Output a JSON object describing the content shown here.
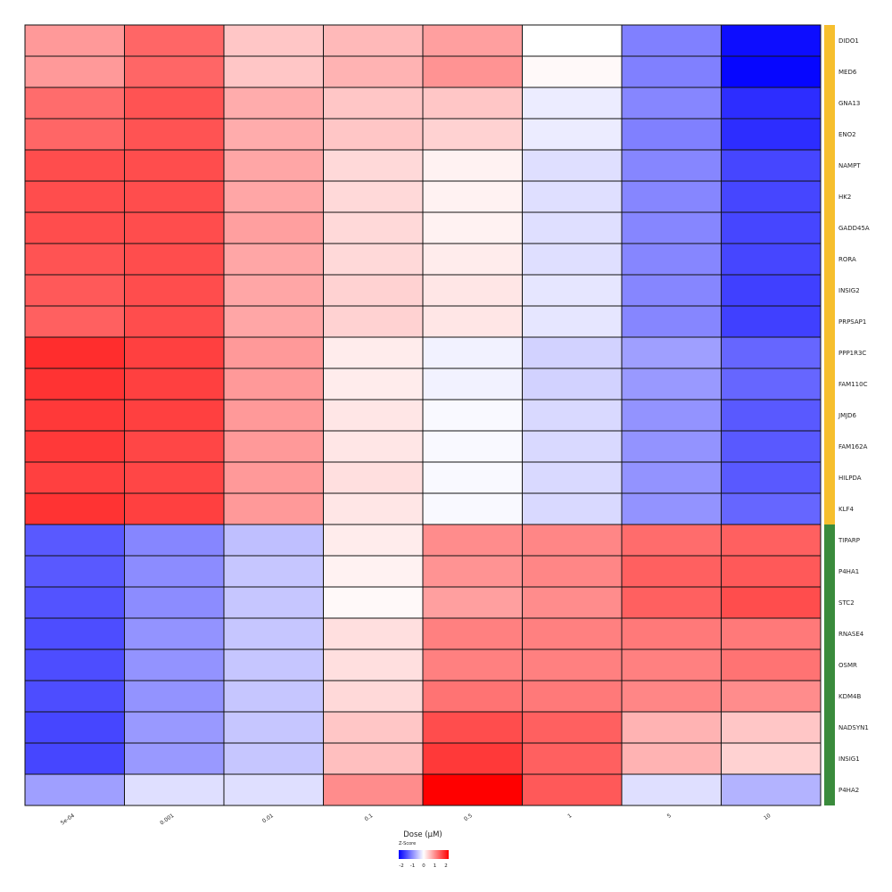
{
  "chart_data": {
    "type": "heatmap",
    "xlabel": "Dose (µM)",
    "x_categories": [
      "5e-04",
      "0.001",
      "0.01",
      "0.1",
      "0.5",
      "1",
      "5",
      "10"
    ],
    "rows": [
      "DIDO1",
      "MED6",
      "GNA13",
      "ENO2",
      "NAMPT",
      "HK2",
      "GADD45A",
      "RORA",
      "INSIG2",
      "PRPSAP1",
      "PPP1R3C",
      "FAM110C",
      "JMJD6",
      "FAM162A",
      "HILPDA",
      "KLF4",
      "TIPARP",
      "P4HA1",
      "STC2",
      "RNASE4",
      "OSMR",
      "KDM4B",
      "NADSYN1",
      "INSIG1",
      "P4HA2"
    ],
    "row_groups": [
      {
        "color": "#f6bf2e",
        "rows": 16
      },
      {
        "color": "#3a8b3c",
        "rows": 9
      }
    ],
    "values": [
      [
        0.8,
        1.2,
        0.45,
        0.55,
        0.75,
        0.0,
        -1.0,
        -1.9
      ],
      [
        0.8,
        1.2,
        0.45,
        0.6,
        0.85,
        0.05,
        -1.0,
        -1.95
      ],
      [
        1.15,
        1.35,
        0.65,
        0.45,
        0.45,
        -0.15,
        -0.95,
        -1.65
      ],
      [
        1.2,
        1.35,
        0.65,
        0.45,
        0.35,
        -0.15,
        -1.0,
        -1.65
      ],
      [
        1.4,
        1.4,
        0.7,
        0.3,
        0.1,
        -0.25,
        -0.95,
        -1.45
      ],
      [
        1.4,
        1.4,
        0.7,
        0.3,
        0.1,
        -0.25,
        -0.95,
        -1.45
      ],
      [
        1.4,
        1.4,
        0.75,
        0.3,
        0.1,
        -0.25,
        -0.95,
        -1.45
      ],
      [
        1.35,
        1.4,
        0.7,
        0.3,
        0.15,
        -0.25,
        -0.95,
        -1.45
      ],
      [
        1.3,
        1.4,
        0.7,
        0.35,
        0.2,
        -0.2,
        -0.95,
        -1.5
      ],
      [
        1.25,
        1.4,
        0.7,
        0.35,
        0.2,
        -0.2,
        -0.95,
        -1.5
      ],
      [
        1.65,
        1.5,
        0.8,
        0.15,
        -0.1,
        -0.35,
        -0.75,
        -1.2
      ],
      [
        1.6,
        1.5,
        0.8,
        0.15,
        -0.1,
        -0.35,
        -0.8,
        -1.2
      ],
      [
        1.55,
        1.5,
        0.8,
        0.2,
        -0.05,
        -0.3,
        -0.85,
        -1.3
      ],
      [
        1.55,
        1.45,
        0.8,
        0.2,
        -0.05,
        -0.3,
        -0.85,
        -1.3
      ],
      [
        1.5,
        1.45,
        0.8,
        0.25,
        -0.05,
        -0.3,
        -0.85,
        -1.3
      ],
      [
        1.6,
        1.5,
        0.8,
        0.2,
        -0.05,
        -0.3,
        -0.85,
        -1.2
      ],
      [
        -1.3,
        -0.95,
        -0.5,
        0.15,
        0.9,
        0.95,
        1.15,
        1.25
      ],
      [
        -1.3,
        -0.9,
        -0.45,
        0.1,
        0.85,
        0.95,
        1.25,
        1.3
      ],
      [
        -1.35,
        -0.9,
        -0.45,
        0.05,
        0.75,
        0.9,
        1.25,
        1.4
      ],
      [
        -1.4,
        -0.85,
        -0.45,
        0.25,
        1.0,
        1.0,
        1.05,
        1.05
      ],
      [
        -1.4,
        -0.85,
        -0.45,
        0.25,
        1.0,
        1.0,
        1.0,
        1.1
      ],
      [
        -1.4,
        -0.85,
        -0.45,
        0.3,
        1.1,
        1.05,
        0.95,
        0.9
      ],
      [
        -1.45,
        -0.8,
        -0.45,
        0.45,
        1.4,
        1.25,
        0.6,
        0.45
      ],
      [
        -1.45,
        -0.8,
        -0.45,
        0.5,
        1.55,
        1.25,
        0.6,
        0.35
      ],
      [
        -0.75,
        -0.25,
        -0.25,
        0.9,
        2.0,
        1.3,
        -0.25,
        -0.6
      ]
    ],
    "legend": {
      "title": "Z-Score",
      "min": -2,
      "max": 2,
      "ticks": [
        "-2",
        "-1",
        "0",
        "1",
        "2"
      ],
      "low_color": "#0000ff",
      "mid_color": "#ffffff",
      "high_color": "#ff0000",
      "placement": "bottom-center"
    }
  }
}
